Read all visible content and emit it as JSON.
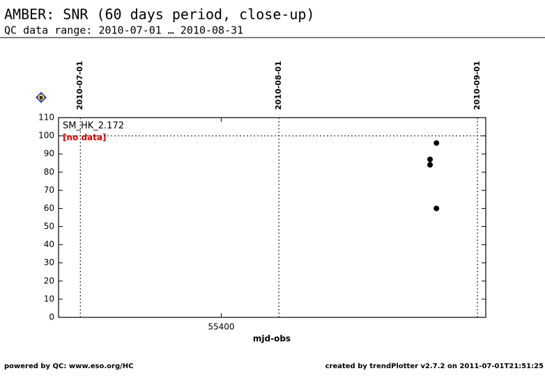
{
  "header": {
    "title": "AMBER: SNR (60 days period, close-up)",
    "subtitle": "QC data range: 2010-07-01 … 2010-08-31"
  },
  "chart_data": {
    "type": "scatter",
    "panel_label": "SM_HK_2.172",
    "status": "[no data]",
    "badge": "B",
    "x_label": "mjd-obs",
    "xlim": [
      55374.6,
      55441.3
    ],
    "xticks": [
      55400
    ],
    "ylim": [
      0,
      110
    ],
    "yticks": [
      0,
      10,
      20,
      30,
      40,
      50,
      60,
      70,
      80,
      90,
      100,
      110
    ],
    "reference_y": 100,
    "date_lines": [
      {
        "x": 55378,
        "label": "2010-07-01"
      },
      {
        "x": 55409,
        "label": "2010-08-01"
      },
      {
        "x": 55440,
        "label": "2010-09-01"
      }
    ],
    "series": [
      {
        "color": "#000000",
        "x": [
          55432.6,
          55432.6,
          55433.6,
          55433.6
        ],
        "values": [
          87,
          84,
          96,
          60
        ]
      }
    ]
  },
  "footer": {
    "left": "powered by QC: www.eso.org/HC",
    "right": "created by trendPlotter v2.7.2 on 2011-07-01T21:51:25"
  }
}
